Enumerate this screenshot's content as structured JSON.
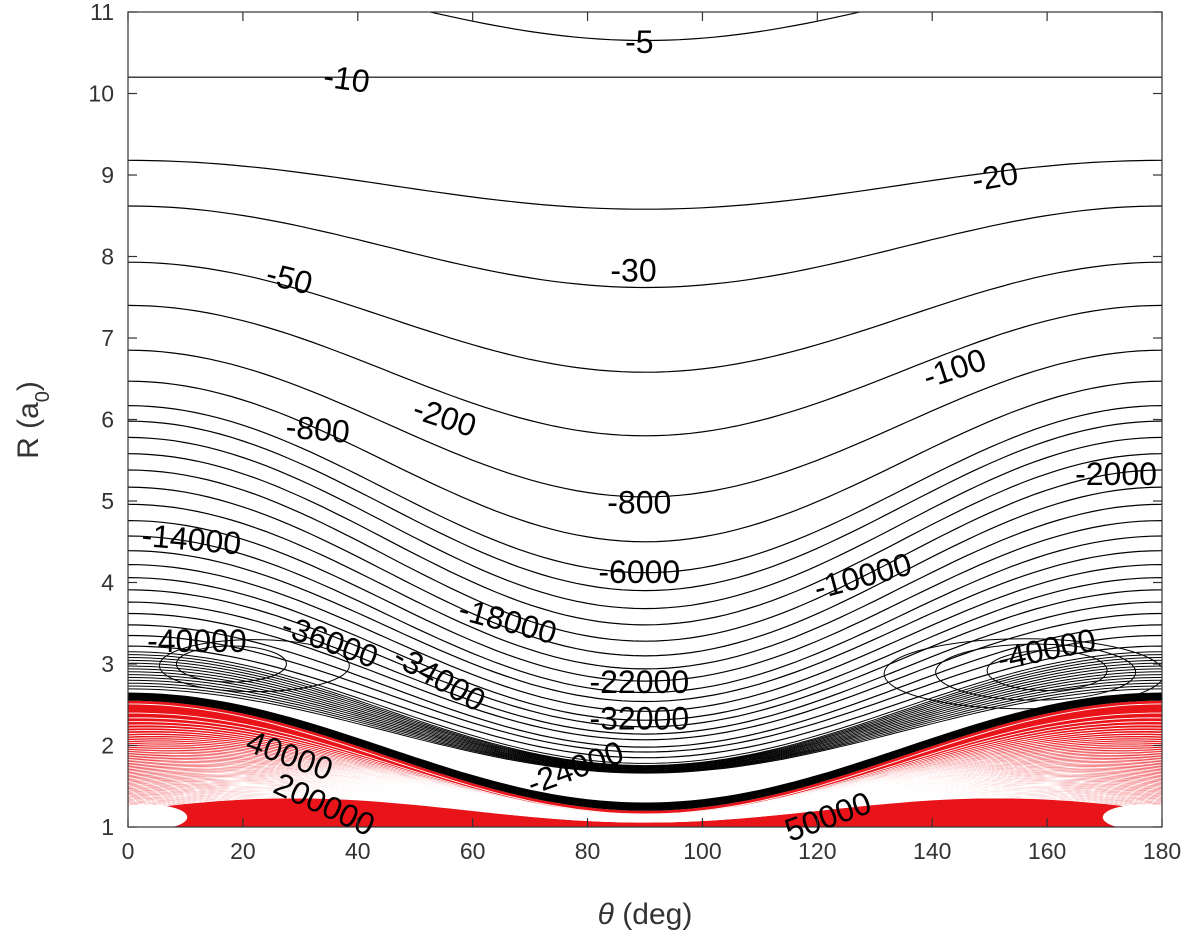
{
  "chart_data": {
    "type": "contour",
    "title": "",
    "xlabel_symbol": "θ",
    "xlabel_unit": " (deg)",
    "ylabel_main": "R (a",
    "ylabel_sub": "0",
    "ylabel_close": ")",
    "xlim": [
      0,
      180
    ],
    "ylim": [
      1,
      11
    ],
    "xticks": [
      "0",
      "20",
      "40",
      "60",
      "80",
      "100",
      "120",
      "140",
      "160",
      "180"
    ],
    "yticks": [
      "1",
      "2",
      "3",
      "4",
      "5",
      "6",
      "7",
      "8",
      "9",
      "10",
      "11"
    ],
    "grid": false,
    "colors": {
      "negative": "#000000",
      "positive": "#e8141a"
    },
    "negative_contours": {
      "base_R": [
        10.2,
        9.18,
        8.62,
        7.93,
        7.4,
        6.85,
        6.47,
        6.17,
        5.98,
        5.78,
        5.58,
        5.38,
        5.17,
        4.96,
        4.76,
        4.57,
        4.39,
        4.22,
        4.06,
        3.91,
        3.76,
        3.62,
        3.48,
        3.35,
        3.22
      ],
      "dip_deltaR": [
        0,
        0.6,
        1.0,
        1.35,
        1.6,
        1.8,
        1.97,
        2.05,
        2.08,
        2.1,
        2.1,
        2.1,
        2.07,
        2.02,
        1.97,
        1.92,
        1.85,
        1.8,
        1.75,
        1.68,
        1.62,
        1.55,
        1.5,
        1.43,
        1.37
      ]
    },
    "top_contour": {
      "min_R": 10.65
    },
    "dense_band": {
      "R_edge_0": 2.65,
      "R_edge_90": 1.3
    },
    "positive_contours": {
      "R_edge_0": 2.55,
      "R_edge_90": 1.2,
      "count": 60
    },
    "contour_labels": [
      {
        "text": "-5",
        "theta": 89,
        "R": 10.6,
        "angle": 0
      },
      {
        "text": "-10",
        "theta": 38,
        "R": 10.15,
        "angle": 8
      },
      {
        "text": "-20",
        "theta": 151,
        "R": 8.95,
        "angle": -10
      },
      {
        "text": "-30",
        "theta": 88,
        "R": 7.8,
        "angle": 0
      },
      {
        "text": "-50",
        "theta": 28,
        "R": 7.7,
        "angle": 14
      },
      {
        "text": "-100",
        "theta": 144,
        "R": 6.6,
        "angle": -18
      },
      {
        "text": "-200",
        "theta": 55,
        "R": 6.0,
        "angle": 18
      },
      {
        "text": "-800",
        "theta": 33,
        "R": 5.85,
        "angle": 5
      },
      {
        "text": "-2000",
        "theta": 172,
        "R": 5.3,
        "angle": 0
      },
      {
        "text": "-800",
        "theta": 89,
        "R": 4.95,
        "angle": 0
      },
      {
        "text": "-14000",
        "theta": 11,
        "R": 4.5,
        "angle": 5
      },
      {
        "text": "-6000",
        "theta": 89,
        "R": 4.1,
        "angle": 0
      },
      {
        "text": "-10000",
        "theta": 128,
        "R": 4.05,
        "angle": -15
      },
      {
        "text": "-18000",
        "theta": 66,
        "R": 3.5,
        "angle": 15
      },
      {
        "text": "-40000",
        "theta": 12,
        "R": 3.25,
        "angle": 0
      },
      {
        "text": "-36000",
        "theta": 35,
        "R": 3.25,
        "angle": 20
      },
      {
        "text": "-40000",
        "theta": 160,
        "R": 3.15,
        "angle": -12
      },
      {
        "text": "-34000",
        "theta": 54,
        "R": 2.8,
        "angle": 30
      },
      {
        "text": "-22000",
        "theta": 89,
        "R": 2.75,
        "angle": 0
      },
      {
        "text": "-32000",
        "theta": 89,
        "R": 2.3,
        "angle": 0
      },
      {
        "text": "-24000",
        "theta": 78,
        "R": 1.7,
        "angle": -20
      },
      {
        "text": "40000",
        "theta": 28,
        "R": 1.85,
        "angle": 20
      },
      {
        "text": "200000",
        "theta": 34,
        "R": 1.25,
        "angle": 25
      },
      {
        "text": "50000",
        "theta": 122,
        "R": 1.1,
        "angle": -20
      }
    ]
  }
}
